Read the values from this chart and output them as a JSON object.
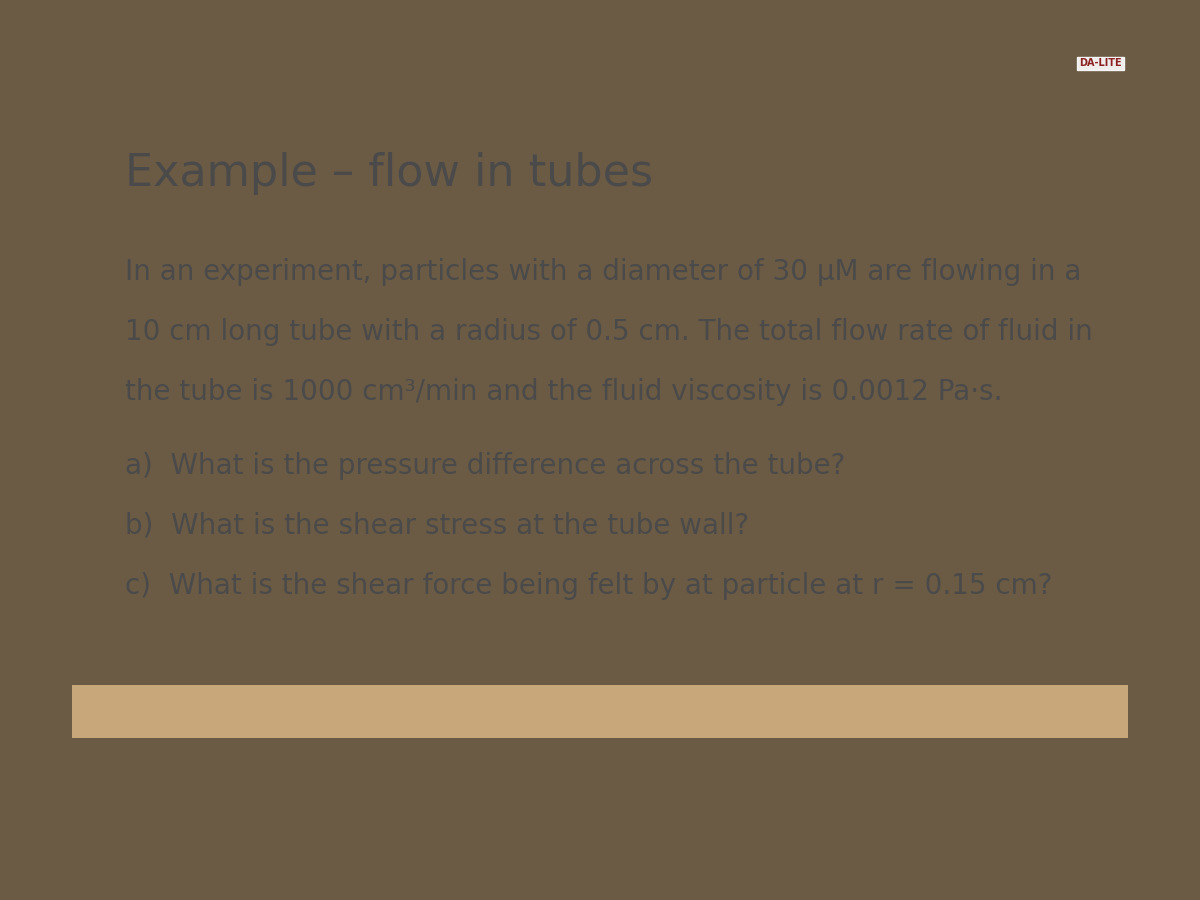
{
  "title": "Example – flow in tubes",
  "title_fontsize": 32,
  "title_color": "#4a4a4a",
  "body_text_line1": "In an experiment, particles with a diameter of 30 μM are flowing in a",
  "body_text_line2": "10 cm long tube with a radius of 0.5 cm. The total flow rate of fluid in",
  "body_text_line3": "the tube is 1000 cm³/min and the fluid viscosity is 0.0012 Pa·s.",
  "qa": [
    "a)  What is the pressure difference across the tube?",
    "b)  What is the shear stress at the tube wall?",
    "c)  What is the shear force being felt by at particle at r = 0.15 cm?"
  ],
  "body_fontsize": 20,
  "body_color": "#4a4a4a",
  "slide_bg": "#f5f4f0",
  "bottom_bar_color": "#c8a87a",
  "outer_bg": "#6b5b45",
  "logo_text": "DA-LITE",
  "logo_color": "#8b2020"
}
